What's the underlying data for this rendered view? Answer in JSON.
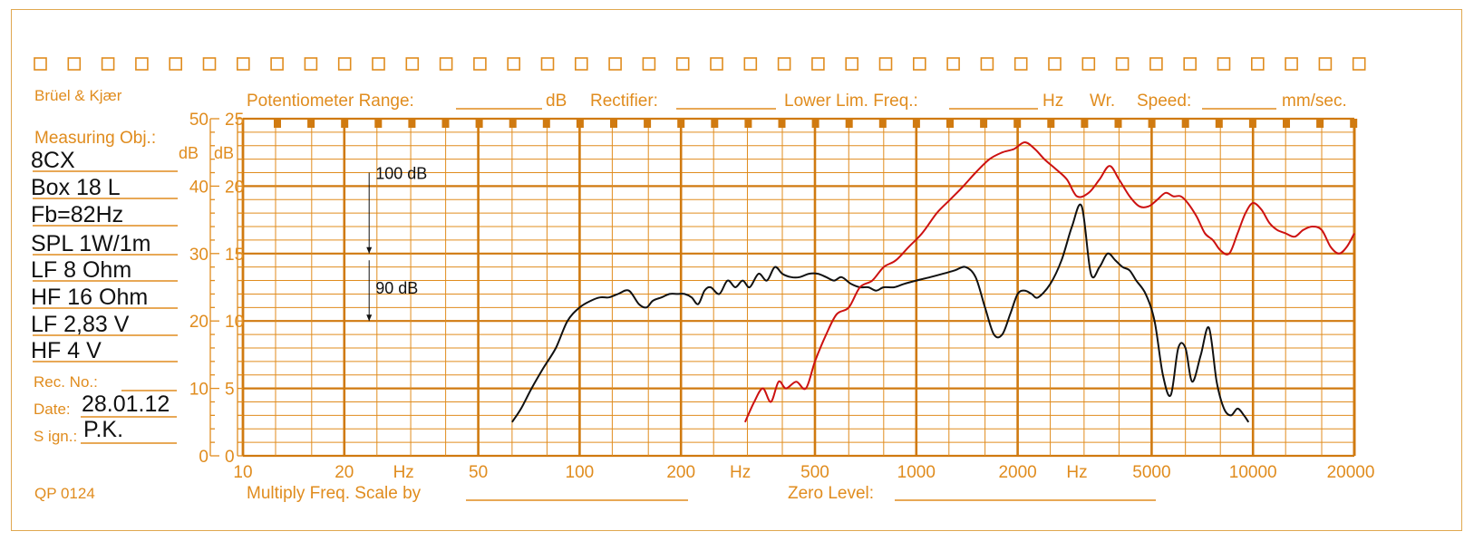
{
  "header": {
    "brand": "Brüel & Kjær",
    "potentiometer_label": "Potentiometer Range:",
    "potentiometer_unit": "dB",
    "rectifier_label": "Rectifier:",
    "lower_lim_label": "Lower Lim. Freq.:",
    "lower_lim_unit": "Hz",
    "wr_label": "Wr.",
    "speed_label": "Speed:",
    "speed_unit": "mm/sec."
  },
  "sidebar": {
    "measuring_label": "Measuring Obj.:",
    "lines": [
      "8CX",
      "Box 18 L",
      "Fb=82Hz",
      "SPL 1W/1m",
      "LF 8 Ohm",
      "HF 16 Ohm",
      "LF 2,83 V",
      "HF 4 V"
    ],
    "rec_label": "Rec.  No.:",
    "date_label": "Date:",
    "date_value": "28.01.12",
    "sign_label": "S ign.:",
    "sign_value": "P.K."
  },
  "footer": {
    "form_code": "QP  0124",
    "multiply_label": "Multiply Freq. Scale by",
    "zero_level_label": "Zero Level:"
  },
  "colors": {
    "grid": "#e08c1e",
    "grid_heavy": "#d07a10",
    "text_orange": "#e08c1e",
    "curve_lf": "#111111",
    "curve_hf": "#cc1111"
  },
  "chart_data": {
    "type": "line",
    "x_scale": "log",
    "xlim": [
      10,
      20000
    ],
    "x_tick_labels": [
      "10",
      "20",
      "Hz",
      "50",
      "100",
      "200",
      "Hz",
      "500",
      "1000",
      "2000",
      "Hz",
      "5000",
      "10000",
      "20000"
    ],
    "y_left_ticks": [
      "50",
      "40",
      "30",
      "20",
      "10",
      "0"
    ],
    "y_left_unit": "dB",
    "y_right_ticks": [
      "25",
      "20",
      "15",
      "10",
      "5",
      "0"
    ],
    "y_right_unit": "dB",
    "ylim": [
      0,
      50
    ],
    "grid": true,
    "annotations": [
      {
        "text": "100 dB",
        "x_hz": 24,
        "y": 42
      },
      {
        "text": "90 dB",
        "x_hz": 24,
        "y": 25
      }
    ],
    "series": [
      {
        "color": "#111111",
        "x": [
          63,
          67,
          72,
          78,
          85,
          92,
          100,
          108,
          115,
          122,
          130,
          140,
          150,
          158,
          165,
          175,
          185,
          195,
          205,
          215,
          225,
          235,
          245,
          260,
          275,
          290,
          305,
          320,
          340,
          360,
          380,
          400,
          425,
          450,
          480,
          510,
          540,
          570,
          600,
          640,
          680,
          720,
          760,
          800,
          860,
          920,
          1000,
          1100,
          1200,
          1300,
          1400,
          1500,
          1600,
          1700,
          1800,
          1900,
          2000,
          2100,
          2200,
          2300,
          2500,
          2700,
          2900,
          3100,
          3300,
          3500,
          3700,
          3900,
          4100,
          4300,
          4500,
          4800,
          5100,
          5400,
          5700,
          6000,
          6300,
          6600,
          7000,
          7400,
          7800,
          8200,
          8600,
          9000,
          9400,
          9700
        ],
        "values": [
          5,
          7,
          10,
          13,
          16,
          20,
          22,
          23,
          23.5,
          23.5,
          24,
          24.5,
          22.5,
          22,
          23,
          23.5,
          24,
          24,
          24,
          23.5,
          22.5,
          24.5,
          25,
          24,
          26,
          25,
          26,
          25,
          27,
          26,
          28,
          27,
          26.5,
          26.5,
          27,
          27,
          26.5,
          26,
          26.5,
          25.5,
          25,
          25,
          24.5,
          25,
          25,
          25.5,
          26,
          26.5,
          27,
          27.5,
          28,
          26.5,
          22,
          18,
          18,
          21,
          24,
          24.5,
          24,
          23.5,
          25.5,
          29,
          34,
          37,
          27,
          28,
          30,
          29,
          28,
          27.5,
          26,
          24,
          20,
          12,
          9,
          16,
          16,
          11,
          15,
          19,
          11,
          7,
          6,
          7,
          6,
          5
        ]
      },
      {
        "color": "#cc1111",
        "x": [
          310,
          330,
          350,
          370,
          390,
          410,
          440,
          470,
          500,
          540,
          580,
          630,
          680,
          740,
          800,
          870,
          950,
          1040,
          1150,
          1260,
          1380,
          1500,
          1650,
          1800,
          1950,
          2100,
          2250,
          2400,
          2600,
          2800,
          3000,
          3250,
          3500,
          3750,
          4000,
          4300,
          4600,
          4900,
          5200,
          5500,
          5800,
          6100,
          6400,
          6800,
          7200,
          7600,
          8000,
          8500,
          9000,
          9500,
          10000,
          10600,
          11200,
          11800,
          12500,
          13300,
          14100,
          15000,
          16000,
          17000,
          18000,
          19000,
          20000
        ],
        "values": [
          5,
          8,
          10,
          8,
          11,
          10,
          11,
          10,
          14,
          18,
          21,
          22,
          25,
          26,
          28,
          29,
          31,
          33,
          36,
          38,
          40,
          42,
          44,
          45,
          45.5,
          46.5,
          45.5,
          44,
          42.5,
          41,
          38.5,
          39,
          41,
          43,
          41,
          38.5,
          37,
          37,
          38,
          39,
          38.5,
          38.5,
          37.5,
          35.5,
          33,
          32,
          30.5,
          30,
          33,
          36,
          37.5,
          36.5,
          34.5,
          33.5,
          33,
          32.5,
          33.5,
          34,
          33.5,
          31,
          30,
          31,
          33
        ]
      }
    ]
  }
}
